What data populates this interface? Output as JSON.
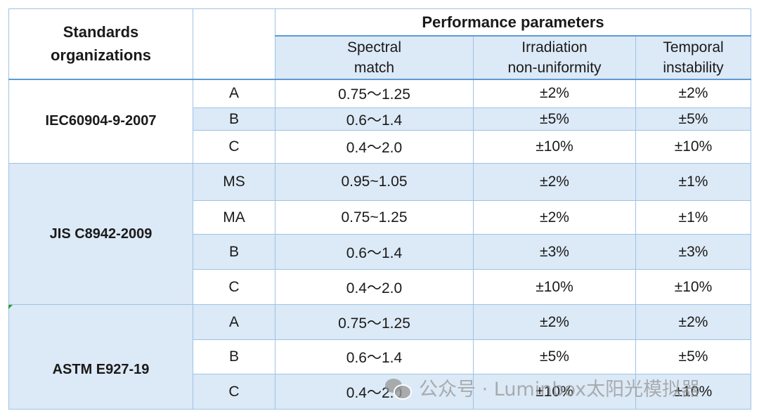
{
  "header": {
    "org_col": "Standards organizations",
    "perf": "Performance parameters",
    "spectral": [
      "Spectral",
      "match"
    ],
    "irradiation": [
      "Irradiation",
      "non-uniformity"
    ],
    "temporal": [
      "Temporal",
      "instability"
    ]
  },
  "groups": [
    {
      "name": "IEC60904-9-2007",
      "rows": [
        {
          "grade": "A",
          "spectral": "0.75～1.25",
          "irr": "±2%",
          "temp": "±2%"
        },
        {
          "grade": "B",
          "spectral": "0.6～1.4",
          "irr": "±5%",
          "temp": "±5%"
        },
        {
          "grade": "C",
          "spectral": "0.4～2.0",
          "irr": "±10%",
          "temp": "±10%"
        }
      ]
    },
    {
      "name": "JIS C8942-2009",
      "rows": [
        {
          "grade": "MS",
          "spectral": "0.95~1.05",
          "irr": "±2%",
          "temp": "±1%"
        },
        {
          "grade": "MA",
          "spectral": "0.75~1.25",
          "irr": "±2%",
          "temp": "±1%"
        },
        {
          "grade": "B",
          "spectral": "0.6～1.4",
          "irr": "±3%",
          "temp": "±3%"
        },
        {
          "grade": "C",
          "spectral": "0.4～2.0",
          "irr": "±10%",
          "temp": "±10%"
        }
      ]
    },
    {
      "name": "ASTM E927-19",
      "rows": [
        {
          "grade": "A",
          "spectral": "0.75～1.25",
          "irr": "±2%",
          "temp": "±2%"
        },
        {
          "grade": "B",
          "spectral": "0.6～1.4",
          "irr": "±5%",
          "temp": "±5%"
        },
        {
          "grade": "C",
          "spectral": "0.4～2.0",
          "irr": "±10%",
          "temp": "±10%"
        }
      ]
    }
  ],
  "watermark": "公众号 · Luminbox太阳光模拟器"
}
